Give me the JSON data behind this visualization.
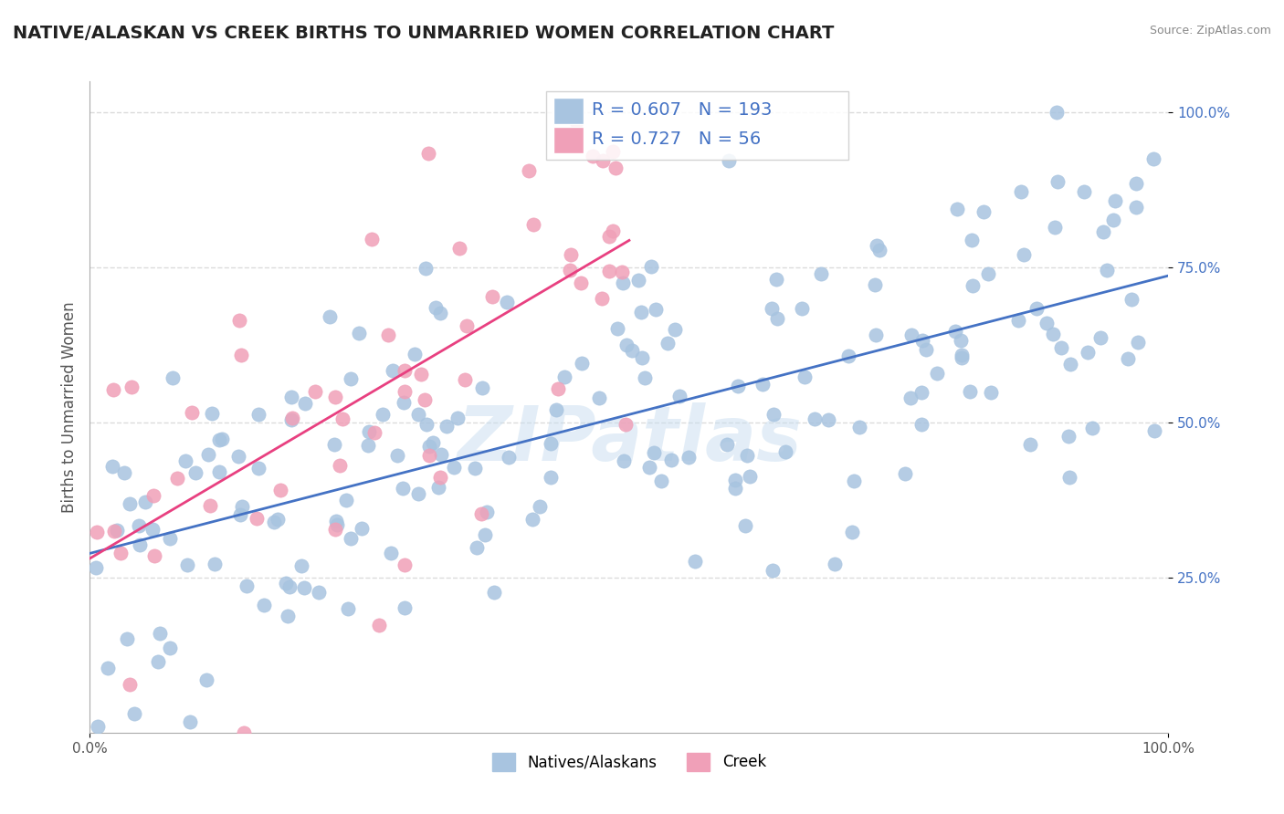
{
  "title": "NATIVE/ALASKAN VS CREEK BIRTHS TO UNMARRIED WOMEN CORRELATION CHART",
  "source": "Source: ZipAtlas.com",
  "xlabel": "",
  "ylabel": "Births to Unmarried Women",
  "xlim": [
    0,
    1
  ],
  "ylim": [
    0,
    1
  ],
  "xtick_labels": [
    "0.0%",
    "100.0%"
  ],
  "ytick_labels": [
    "25.0%",
    "50.0%",
    "75.0%",
    "100.0%"
  ],
  "ytick_positions": [
    0.25,
    0.5,
    0.75,
    1.0
  ],
  "legend_labels": [
    "Natives/Alaskans",
    "Creek"
  ],
  "native_color": "#a8c4e0",
  "creek_color": "#f0a0b8",
  "native_line_color": "#4472c4",
  "creek_line_color": "#e84080",
  "R_native": 0.607,
  "N_native": 193,
  "R_creek": 0.727,
  "N_creek": 56,
  "watermark": "ZIPatlas",
  "background_color": "#ffffff",
  "grid_color": "#cccccc",
  "title_fontsize": 14,
  "axis_label_fontsize": 12,
  "tick_fontsize": 11,
  "legend_fontsize": 12,
  "stats_fontsize": 14
}
